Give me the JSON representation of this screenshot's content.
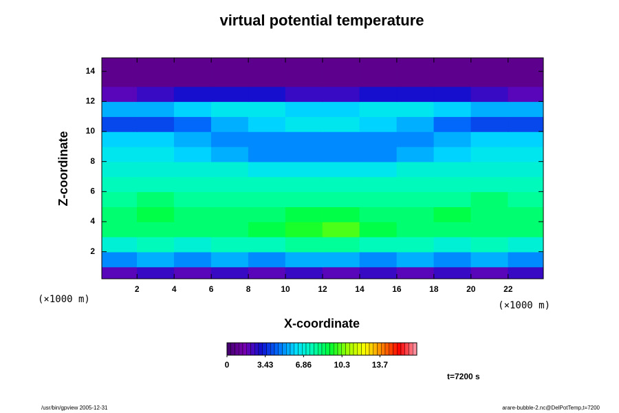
{
  "chart_data": {
    "type": "heatmap",
    "title": "virtual potential temperature",
    "x_label": "X-coordinate",
    "y_label": "Z-coordinate",
    "x_unit": "(×1000 m)",
    "y_unit": "(×1000 m)",
    "time_label": "t=7200 s",
    "footer_left": "/usr/bin/gpview 2005-12-31",
    "footer_right": "arare-bubble-2.nc@DelPotTemp,t=7200",
    "x": [
      1,
      3,
      5,
      7,
      9,
      11,
      13,
      15,
      17,
      19,
      21,
      23
    ],
    "y": [
      0.5,
      1.5,
      2.5,
      3.5,
      4.5,
      5.5,
      6.5,
      7.5,
      8.5,
      9.5,
      10.5,
      11.5,
      12.5,
      13.5,
      14.5
    ],
    "values": [
      [
        2,
        2.5,
        2,
        2.5,
        2,
        2.5,
        2,
        2.5,
        2,
        2.5,
        2,
        2.5
      ],
      [
        5,
        5.5,
        5,
        5.5,
        5,
        5.5,
        5.5,
        5,
        5.5,
        5,
        5.5,
        5
      ],
      [
        7,
        7.5,
        7,
        7.5,
        7.5,
        8,
        8,
        7.5,
        7.5,
        7,
        7.5,
        7
      ],
      [
        8.5,
        8.5,
        8.5,
        8.5,
        9,
        9.5,
        10,
        9,
        8.5,
        8.5,
        8.5,
        8.5
      ],
      [
        8.5,
        9,
        8.5,
        8.5,
        8.5,
        9,
        9,
        8.5,
        8.5,
        9,
        8.5,
        8.5
      ],
      [
        8,
        8.5,
        8,
        8,
        8,
        8,
        8,
        8,
        8,
        8,
        8.5,
        8
      ],
      [
        7.5,
        7.5,
        7.5,
        7.5,
        7.5,
        7.5,
        7.5,
        7.5,
        7.5,
        7.5,
        7.5,
        7.5
      ],
      [
        7,
        7,
        7,
        7,
        6.5,
        6.5,
        6.5,
        6.5,
        7,
        7,
        7,
        7
      ],
      [
        6.5,
        6.5,
        6,
        5.5,
        5,
        5,
        5,
        5,
        5.5,
        6,
        6.5,
        6.5
      ],
      [
        6,
        6,
        5.5,
        5,
        5,
        5,
        5,
        5,
        5,
        5.5,
        6,
        6
      ],
      [
        4,
        4,
        4.5,
        5.5,
        6,
        6.5,
        6.5,
        6,
        5.5,
        4.5,
        4,
        4
      ],
      [
        5.5,
        5.5,
        6,
        6.5,
        6.5,
        6,
        6,
        6.5,
        6.5,
        6,
        5.5,
        5.5
      ],
      [
        2,
        2.5,
        3,
        3,
        3,
        2.5,
        2.5,
        3,
        3,
        3,
        2.5,
        2
      ],
      [
        0.8,
        0.8,
        0.8,
        0.8,
        0.8,
        0.8,
        0.8,
        0.8,
        0.8,
        0.8,
        0.8,
        0.8
      ],
      [
        0.8,
        0.8,
        0.8,
        0.8,
        0.8,
        0.8,
        0.8,
        0.8,
        0.8,
        0.8,
        0.8,
        0.8
      ]
    ],
    "xlim": [
      0.1,
      23.9
    ],
    "ylim": [
      0.2,
      14.9
    ],
    "xticks": [
      2,
      4,
      6,
      8,
      10,
      12,
      14,
      16,
      18,
      20,
      22
    ],
    "yticks": [
      2,
      4,
      6,
      8,
      10,
      12,
      14
    ],
    "clim": [
      0,
      17
    ],
    "cticks": [
      0,
      3.43,
      6.86,
      10.3,
      13.7
    ],
    "colormap": [
      "#40006a",
      "#7800b0",
      "#1010d0",
      "#0070ff",
      "#00e0ff",
      "#00ffb0",
      "#00ff30",
      "#a0ff00",
      "#ffff00",
      "#ff8000",
      "#ff0000",
      "#ffa0b0"
    ]
  }
}
